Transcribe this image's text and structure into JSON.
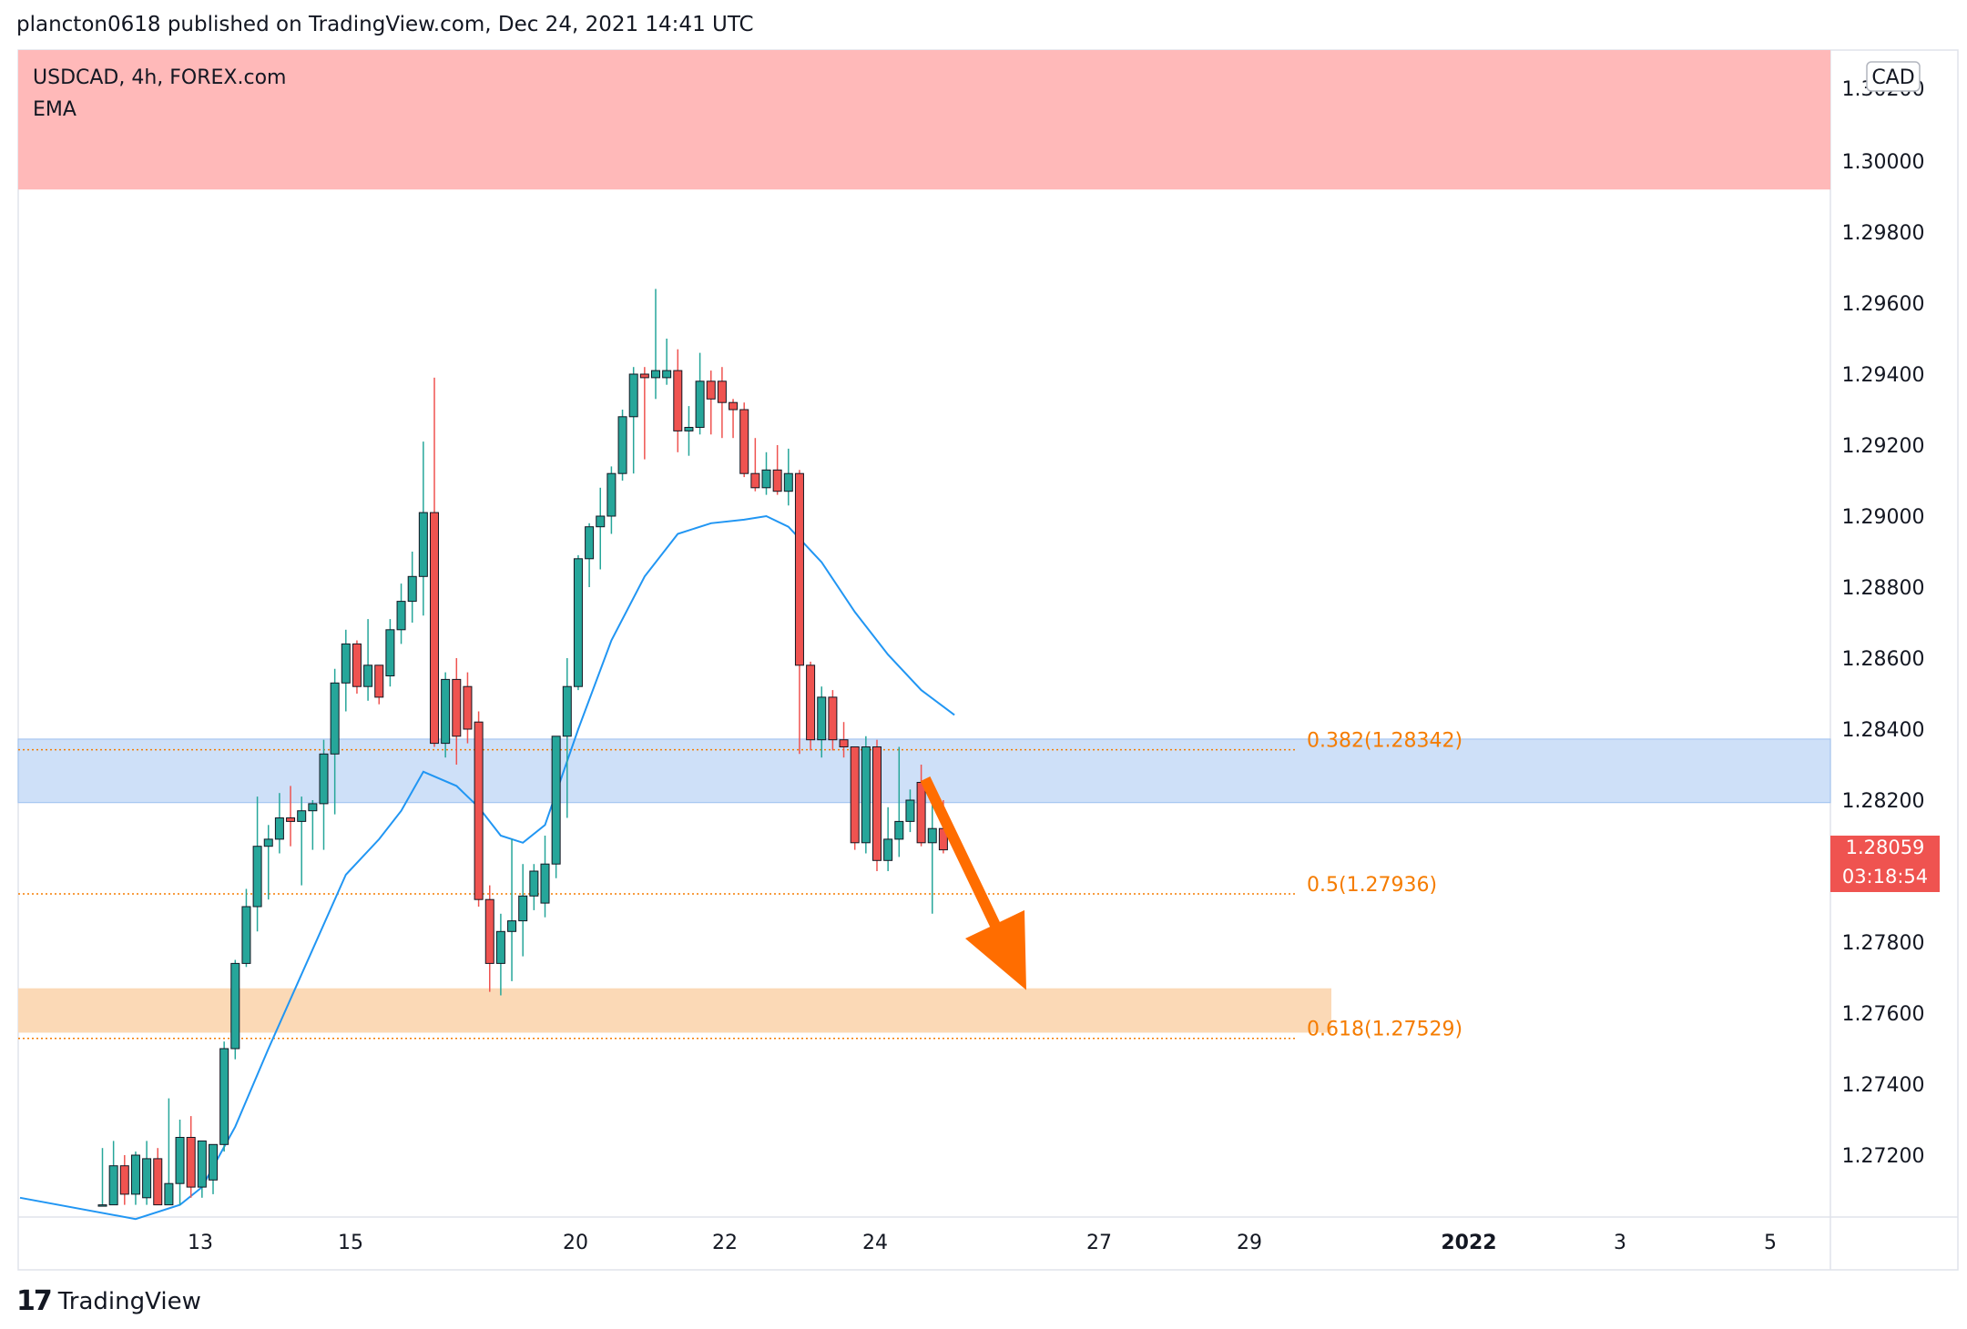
{
  "header": {
    "text": "plancton0618 published on TradingView.com, Dec 24, 2021 14:41 UTC"
  },
  "legend": {
    "symbol": "USDCAD, 4h, FOREX.com",
    "indicator": "EMA"
  },
  "currency_badge": "CAD",
  "price_tag": {
    "price": "1.28059",
    "countdown": "03:18:54"
  },
  "footer": {
    "brand": "TradingView"
  },
  "colors": {
    "up": "#26a69a",
    "down": "#ef5350",
    "ema": "#2196f3",
    "fib": "#f57c00",
    "resistance_zone": "#ffb9b9",
    "blue_zone": "#c9ddf7",
    "support_zone": "#fbd9b6",
    "arrow": "#ff6d00"
  },
  "chart_data": {
    "type": "candlestick",
    "y_axis": {
      "ticks": [
        "1.27200",
        "1.27400",
        "1.27600",
        "1.27800",
        "1.28000",
        "1.28200",
        "1.28400",
        "1.28600",
        "1.28800",
        "1.29000",
        "1.29200",
        "1.29400",
        "1.29600",
        "1.29800",
        "1.30000"
      ],
      "range": [
        1.27,
        1.3033
      ],
      "side": "right"
    },
    "x_axis": {
      "ticks": [
        "13",
        "15",
        "20",
        "22",
        "24",
        "27",
        "29",
        "2022",
        "3",
        "5"
      ]
    },
    "fib_levels": [
      {
        "label": "0.382(1.28342)",
        "price": 1.28342
      },
      {
        "label": "0.5(1.27936)",
        "price": 1.27936
      },
      {
        "label": "0.618(1.27529)",
        "price": 1.27529
      }
    ],
    "zones": [
      {
        "name": "resistance",
        "from": 1.2992,
        "to": 1.3033
      },
      {
        "name": "blue",
        "from": 1.28193,
        "to": 1.28372
      },
      {
        "name": "support",
        "from": 1.27545,
        "to": 1.2767
      }
    ],
    "last_price": 1.28059,
    "arrow": {
      "from_price": 1.2826,
      "to_price": 1.27665
    },
    "candles": [
      {
        "o": 1.2706,
        "h": 1.2722,
        "l": 1.2706,
        "c": 1.2706
      },
      {
        "o": 1.2706,
        "h": 1.2724,
        "l": 1.2706,
        "c": 1.2717
      },
      {
        "o": 1.2717,
        "h": 1.272,
        "l": 1.2706,
        "c": 1.2709
      },
      {
        "o": 1.2709,
        "h": 1.2721,
        "l": 1.2706,
        "c": 1.272
      },
      {
        "o": 1.2708,
        "h": 1.2724,
        "l": 1.2706,
        "c": 1.2719
      },
      {
        "o": 1.2719,
        "h": 1.2722,
        "l": 1.2706,
        "c": 1.2706
      },
      {
        "o": 1.2706,
        "h": 1.2736,
        "l": 1.2706,
        "c": 1.2712
      },
      {
        "o": 1.2712,
        "h": 1.273,
        "l": 1.2706,
        "c": 1.2725
      },
      {
        "o": 1.2725,
        "h": 1.2731,
        "l": 1.2708,
        "c": 1.2711
      },
      {
        "o": 1.2711,
        "h": 1.2724,
        "l": 1.2708,
        "c": 1.2724
      },
      {
        "o": 1.2713,
        "h": 1.2723,
        "l": 1.2709,
        "c": 1.2723
      },
      {
        "o": 1.2723,
        "h": 1.2752,
        "l": 1.2721,
        "c": 1.275
      },
      {
        "o": 1.275,
        "h": 1.2775,
        "l": 1.2747,
        "c": 1.2774
      },
      {
        "o": 1.2774,
        "h": 1.2795,
        "l": 1.2773,
        "c": 1.279
      },
      {
        "o": 1.279,
        "h": 1.2821,
        "l": 1.2783,
        "c": 1.2807
      },
      {
        "o": 1.2807,
        "h": 1.2813,
        "l": 1.2792,
        "c": 1.2809
      },
      {
        "o": 1.2809,
        "h": 1.2822,
        "l": 1.2805,
        "c": 1.2815
      },
      {
        "o": 1.2815,
        "h": 1.2824,
        "l": 1.2807,
        "c": 1.2814
      },
      {
        "o": 1.2814,
        "h": 1.2821,
        "l": 1.2796,
        "c": 1.2817
      },
      {
        "o": 1.2817,
        "h": 1.282,
        "l": 1.2806,
        "c": 1.2819
      },
      {
        "o": 1.2819,
        "h": 1.2837,
        "l": 1.2806,
        "c": 1.2833
      },
      {
        "o": 1.2833,
        "h": 1.2857,
        "l": 1.2816,
        "c": 1.2853
      },
      {
        "o": 1.2853,
        "h": 1.2868,
        "l": 1.2845,
        "c": 1.2864
      },
      {
        "o": 1.2864,
        "h": 1.2865,
        "l": 1.285,
        "c": 1.2852
      },
      {
        "o": 1.2852,
        "h": 1.2871,
        "l": 1.2848,
        "c": 1.2858
      },
      {
        "o": 1.2858,
        "h": 1.2858,
        "l": 1.2847,
        "c": 1.2849
      },
      {
        "o": 1.2855,
        "h": 1.2871,
        "l": 1.2852,
        "c": 1.2868
      },
      {
        "o": 1.2868,
        "h": 1.2881,
        "l": 1.2864,
        "c": 1.2876
      },
      {
        "o": 1.2876,
        "h": 1.289,
        "l": 1.287,
        "c": 1.2883
      },
      {
        "o": 1.2883,
        "h": 1.2921,
        "l": 1.2872,
        "c": 1.2901
      },
      {
        "o": 1.2901,
        "h": 1.2939,
        "l": 1.2835,
        "c": 1.2836
      },
      {
        "o": 1.2836,
        "h": 1.2856,
        "l": 1.2832,
        "c": 1.2854
      },
      {
        "o": 1.2854,
        "h": 1.286,
        "l": 1.283,
        "c": 1.2838
      },
      {
        "o": 1.2852,
        "h": 1.2856,
        "l": 1.2836,
        "c": 1.284
      },
      {
        "o": 1.2842,
        "h": 1.2845,
        "l": 1.279,
        "c": 1.2792
      },
      {
        "o": 1.2792,
        "h": 1.2796,
        "l": 1.2766,
        "c": 1.2774
      },
      {
        "o": 1.2774,
        "h": 1.2788,
        "l": 1.2765,
        "c": 1.2783
      },
      {
        "o": 1.2783,
        "h": 1.2809,
        "l": 1.2769,
        "c": 1.2786
      },
      {
        "o": 1.2786,
        "h": 1.2802,
        "l": 1.2776,
        "c": 1.2793
      },
      {
        "o": 1.2793,
        "h": 1.2802,
        "l": 1.2789,
        "c": 1.28
      },
      {
        "o": 1.2791,
        "h": 1.281,
        "l": 1.2787,
        "c": 1.2802
      },
      {
        "o": 1.2802,
        "h": 1.2836,
        "l": 1.2798,
        "c": 1.2838
      },
      {
        "o": 1.2838,
        "h": 1.286,
        "l": 1.2815,
        "c": 1.2852
      },
      {
        "o": 1.2852,
        "h": 1.2889,
        "l": 1.2851,
        "c": 1.2888
      },
      {
        "o": 1.2888,
        "h": 1.2898,
        "l": 1.288,
        "c": 1.2897
      },
      {
        "o": 1.2897,
        "h": 1.2908,
        "l": 1.2885,
        "c": 1.29
      },
      {
        "o": 1.29,
        "h": 1.2914,
        "l": 1.2895,
        "c": 1.2912
      },
      {
        "o": 1.2912,
        "h": 1.293,
        "l": 1.291,
        "c": 1.2928
      },
      {
        "o": 1.2928,
        "h": 1.2942,
        "l": 1.2912,
        "c": 1.294
      },
      {
        "o": 1.294,
        "h": 1.2942,
        "l": 1.2916,
        "c": 1.2939
      },
      {
        "o": 1.2939,
        "h": 1.2964,
        "l": 1.2933,
        "c": 1.2941
      },
      {
        "o": 1.2939,
        "h": 1.295,
        "l": 1.2937,
        "c": 1.2941
      },
      {
        "o": 1.2941,
        "h": 1.2947,
        "l": 1.2918,
        "c": 1.2924
      },
      {
        "o": 1.2924,
        "h": 1.2931,
        "l": 1.2917,
        "c": 1.2925
      },
      {
        "o": 1.2925,
        "h": 1.2946,
        "l": 1.2923,
        "c": 1.2938
      },
      {
        "o": 1.2938,
        "h": 1.2941,
        "l": 1.2923,
        "c": 1.2933
      },
      {
        "o": 1.2938,
        "h": 1.2942,
        "l": 1.2922,
        "c": 1.2932
      },
      {
        "o": 1.2932,
        "h": 1.2933,
        "l": 1.2922,
        "c": 1.293
      },
      {
        "o": 1.293,
        "h": 1.2932,
        "l": 1.2911,
        "c": 1.2912
      },
      {
        "o": 1.2912,
        "h": 1.2922,
        "l": 1.2907,
        "c": 1.2908
      },
      {
        "o": 1.2908,
        "h": 1.2918,
        "l": 1.2906,
        "c": 1.2913
      },
      {
        "o": 1.2913,
        "h": 1.292,
        "l": 1.2906,
        "c": 1.2907
      },
      {
        "o": 1.2907,
        "h": 1.2919,
        "l": 1.2903,
        "c": 1.2912
      },
      {
        "o": 1.2912,
        "h": 1.2913,
        "l": 1.2833,
        "c": 1.2858
      },
      {
        "o": 1.2858,
        "h": 1.2859,
        "l": 1.2834,
        "c": 1.2837
      },
      {
        "o": 1.2837,
        "h": 1.2852,
        "l": 1.2832,
        "c": 1.2849
      },
      {
        "o": 1.2849,
        "h": 1.2851,
        "l": 1.2834,
        "c": 1.2837
      },
      {
        "o": 1.2837,
        "h": 1.2842,
        "l": 1.2832,
        "c": 1.2835
      },
      {
        "o": 1.2835,
        "h": 1.2835,
        "l": 1.2806,
        "c": 1.2808
      },
      {
        "o": 1.2808,
        "h": 1.2838,
        "l": 1.2805,
        "c": 1.2835
      },
      {
        "o": 1.2835,
        "h": 1.2837,
        "l": 1.28,
        "c": 1.2803
      },
      {
        "o": 1.2803,
        "h": 1.2818,
        "l": 1.28,
        "c": 1.2809
      },
      {
        "o": 1.2809,
        "h": 1.2835,
        "l": 1.2804,
        "c": 1.2814
      },
      {
        "o": 1.2814,
        "h": 1.2823,
        "l": 1.2811,
        "c": 1.282
      },
      {
        "o": 1.2825,
        "h": 1.283,
        "l": 1.2807,
        "c": 1.2808
      },
      {
        "o": 1.2808,
        "h": 1.2821,
        "l": 1.2788,
        "c": 1.2812
      },
      {
        "o": 1.2812,
        "h": 1.282,
        "l": 1.2805,
        "c": 1.2806
      }
    ],
    "ema": [
      {
        "i": -18,
        "v": 1.2708
      },
      {
        "i": 3,
        "v": 1.2702
      },
      {
        "i": 7,
        "v": 1.2706
      },
      {
        "i": 9,
        "v": 1.2711
      },
      {
        "i": 12,
        "v": 1.2728
      },
      {
        "i": 15,
        "v": 1.275
      },
      {
        "i": 19,
        "v": 1.2778
      },
      {
        "i": 22,
        "v": 1.2799
      },
      {
        "i": 25,
        "v": 1.2809
      },
      {
        "i": 27,
        "v": 1.2817
      },
      {
        "i": 29,
        "v": 1.2828
      },
      {
        "i": 32,
        "v": 1.2824
      },
      {
        "i": 34,
        "v": 1.2818
      },
      {
        "i": 36,
        "v": 1.281
      },
      {
        "i": 38,
        "v": 1.2808
      },
      {
        "i": 40,
        "v": 1.2813
      },
      {
        "i": 43,
        "v": 1.284
      },
      {
        "i": 46,
        "v": 1.2865
      },
      {
        "i": 49,
        "v": 1.2883
      },
      {
        "i": 52,
        "v": 1.2895
      },
      {
        "i": 55,
        "v": 1.2898
      },
      {
        "i": 58,
        "v": 1.2899
      },
      {
        "i": 60,
        "v": 1.29
      },
      {
        "i": 62,
        "v": 1.2897
      },
      {
        "i": 65,
        "v": 1.2887
      },
      {
        "i": 68,
        "v": 1.2873
      },
      {
        "i": 71,
        "v": 1.2861
      },
      {
        "i": 74,
        "v": 1.2851
      },
      {
        "i": 77,
        "v": 1.2844
      }
    ]
  }
}
